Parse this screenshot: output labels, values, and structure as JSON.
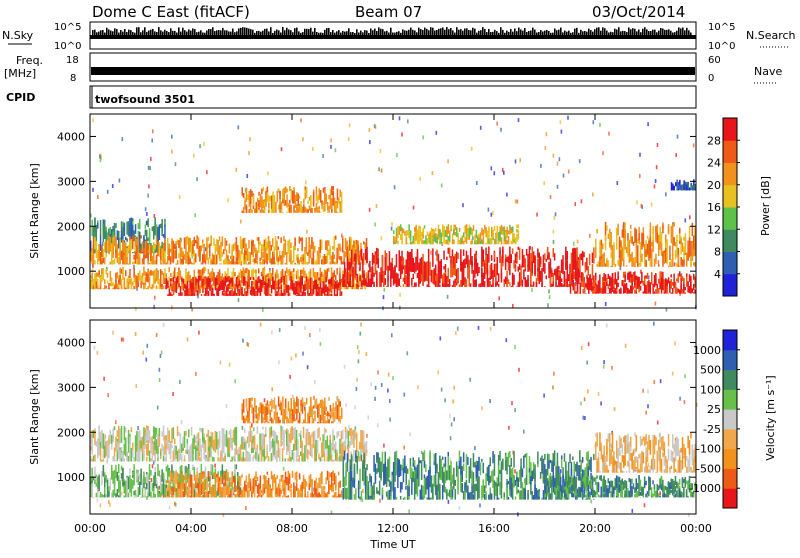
{
  "header": {
    "station": "Dome C East (fitACF)",
    "beam": "Beam 07",
    "date": "03/Oct/2014"
  },
  "top_panels": {
    "nsky_label": "N.Sky",
    "nsky_ticks": [
      "10^5",
      "10^0"
    ],
    "nsearch_label": "N.Search",
    "nsearch_ticks": [
      "10^5",
      "10^0"
    ],
    "freq_label": "Freq.",
    "freq_unit": "[MHz]",
    "freq_ticks": [
      "18",
      "8"
    ],
    "nave_label": "Nave",
    "nave_ticks": [
      "60",
      "0"
    ],
    "cpid_label": "CPID",
    "cpid_value": "twofsound 3501"
  },
  "chart_data": [
    {
      "type": "heatmap",
      "name": "power-panel",
      "ylabel": "Slant Range [km]",
      "y_ticks": [
        "4000",
        "3000",
        "2000",
        "1000"
      ],
      "y_tick_values": [
        4000,
        3000,
        2000,
        1000
      ],
      "ylim": [
        180,
        4500
      ],
      "xlim": [
        0,
        24
      ],
      "colorbar_label": "Power [dB]",
      "colorbar_ticks": [
        "28",
        "24",
        "20",
        "16",
        "12",
        "8",
        "4"
      ],
      "colorbar_tick_values": [
        28,
        24,
        20,
        16,
        12,
        8,
        4
      ],
      "colorbar_range": [
        0,
        32
      ],
      "colors": [
        "#1f22d6",
        "#2f5fb3",
        "#3f8a5e",
        "#5cc24a",
        "#e7c21f",
        "#f2911c",
        "#ef5a16",
        "#e8161b"
      ],
      "bands": [
        {
          "t": [
            0,
            3
          ],
          "r": [
            1400,
            2200
          ],
          "level": 2
        },
        {
          "t": [
            0,
            11
          ],
          "r": [
            1150,
            1800
          ],
          "level": 5
        },
        {
          "t": [
            0,
            11
          ],
          "r": [
            600,
            1100
          ],
          "level": 5
        },
        {
          "t": [
            3,
            10
          ],
          "r": [
            450,
            900
          ],
          "level": 7
        },
        {
          "t": [
            6,
            10
          ],
          "r": [
            2300,
            2900
          ],
          "level": 5
        },
        {
          "t": [
            10,
            20
          ],
          "r": [
            650,
            1550
          ],
          "level": 7
        },
        {
          "t": [
            12,
            17
          ],
          "r": [
            1600,
            2050
          ],
          "level": 4
        },
        {
          "t": [
            19,
            24
          ],
          "r": [
            500,
            1000
          ],
          "level": 7
        },
        {
          "t": [
            20,
            24
          ],
          "r": [
            1100,
            2100
          ],
          "level": 5
        },
        {
          "t": [
            23,
            24
          ],
          "r": [
            2800,
            3050
          ],
          "level": 1
        }
      ]
    },
    {
      "type": "heatmap",
      "name": "velocity-panel",
      "ylabel": "Slant Range [km]",
      "y_ticks": [
        "4000",
        "3000",
        "2000",
        "1000"
      ],
      "y_tick_values": [
        4000,
        3000,
        2000,
        1000
      ],
      "ylim": [
        180,
        4500
      ],
      "xlim": [
        0,
        24
      ],
      "colorbar_label": "Velocity [m s⁻¹]",
      "colorbar_ticks": [
        "1000",
        "500",
        "100",
        "25",
        "-25",
        "-100",
        "-500",
        "-1000"
      ],
      "colors": [
        "#e8161b",
        "#ef5a16",
        "#f2911c",
        "#f0a84a",
        "#c9c9c9",
        "#66c04a",
        "#3f8a5e",
        "#2f5fb3",
        "#1f22d6"
      ],
      "bands": [
        {
          "t": [
            0,
            11
          ],
          "r": [
            1350,
            2150
          ],
          "level": 4
        },
        {
          "t": [
            0,
            6
          ],
          "r": [
            550,
            1300
          ],
          "level": 5
        },
        {
          "t": [
            3,
            10
          ],
          "r": [
            550,
            1150
          ],
          "level": 2
        },
        {
          "t": [
            6,
            10
          ],
          "r": [
            2200,
            2800
          ],
          "level": 2
        },
        {
          "t": [
            10,
            20
          ],
          "r": [
            500,
            1600
          ],
          "level": 6
        },
        {
          "t": [
            18,
            24
          ],
          "r": [
            550,
            1050
          ],
          "level": 6
        },
        {
          "t": [
            20,
            24
          ],
          "r": [
            1100,
            2000
          ],
          "level": 3
        }
      ]
    }
  ],
  "x_axis": {
    "ticks": [
      "00:00",
      "04:00",
      "08:00",
      "12:00",
      "16:00",
      "20:00",
      "00:00"
    ],
    "tick_values": [
      0,
      4,
      8,
      12,
      16,
      20,
      24
    ],
    "label": "Time UT"
  }
}
